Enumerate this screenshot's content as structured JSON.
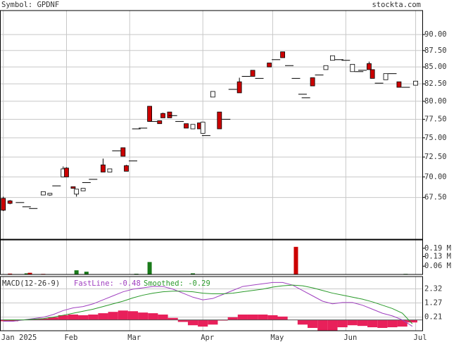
{
  "chart_data": {
    "type": "candlestick",
    "title": "Symbol: GPDNF",
    "source": "stockta.com",
    "log_scale": true,
    "grid": true,
    "up_color": "#ffffff",
    "down_color": "#cc0000",
    "xlim": [
      -1,
      126
    ],
    "xticks": [
      {
        "value": 0,
        "label": "Jan 2025"
      },
      {
        "value": 19,
        "label": "Feb"
      },
      {
        "value": 38,
        "label": "Mar"
      },
      {
        "value": 60,
        "label": "Apr"
      },
      {
        "value": 81,
        "label": "May"
      },
      {
        "value": 103,
        "label": "Jun"
      },
      {
        "value": 124,
        "label": "Jul"
      }
    ],
    "ylim": [
      62.7,
      93.9
    ],
    "yticks": [
      {
        "value": 67.5,
        "label": "67.50"
      },
      {
        "value": 70,
        "label": "70.00"
      },
      {
        "value": 72.5,
        "label": "72.50"
      },
      {
        "value": 75,
        "label": "75.00"
      },
      {
        "value": 77.5,
        "label": "77.50"
      },
      {
        "value": 80,
        "label": "80.00"
      },
      {
        "value": 82.5,
        "label": "82.50"
      },
      {
        "value": 85,
        "label": "85.00"
      },
      {
        "value": 87.5,
        "label": "87.50"
      },
      {
        "value": 90,
        "label": "90.00"
      }
    ],
    "candles": {
      "x": [
        0,
        2,
        5,
        7,
        9,
        12,
        14,
        16,
        18,
        19,
        21,
        22,
        24,
        25,
        27,
        30,
        32,
        34,
        36,
        37,
        39,
        40,
        42,
        44,
        45,
        47,
        48,
        50,
        51,
        53,
        55,
        57,
        59,
        60,
        61,
        63,
        65,
        67,
        69,
        71,
        73,
        75,
        77,
        80,
        82,
        84,
        86,
        88,
        90,
        91,
        93,
        95,
        97,
        99,
        101,
        103,
        105,
        107,
        108,
        110,
        111,
        113,
        115,
        117,
        119,
        121,
        124
      ],
      "open": [
        67.4,
        67.1,
        66.9,
        66.4,
        66.2,
        67.8,
        67.8,
        68.9,
        70.0,
        71.1,
        68.8,
        67.9,
        68.3,
        69.3,
        69.7,
        71.5,
        70.6,
        73.3,
        73.7,
        71.4,
        72.0,
        76.2,
        76.3,
        79.3,
        77.2,
        77.3,
        78.3,
        78.5,
        78.0,
        77.2,
        76.9,
        76.2,
        77.0,
        75.6,
        75.3,
        80.6,
        78.5,
        77.5,
        81.7,
        82.8,
        83.6,
        84.5,
        83.3,
        85.6,
        86.1,
        87.3,
        85.2,
        83.3,
        81.0,
        80.5,
        83.4,
        83.8,
        84.6,
        86.0,
        86.1,
        86.0,
        84.3,
        84.3,
        84.5,
        85.5,
        84.6,
        82.6,
        83.1,
        84.0,
        82.8,
        82.0,
        82.3
      ],
      "high": [
        67.6,
        67.2,
        66.9,
        66.4,
        66.2,
        68.2,
        68.0,
        68.9,
        71.3,
        71.2,
        68.8,
        68.5,
        68.6,
        69.3,
        69.7,
        72.3,
        71.0,
        73.3,
        73.7,
        71.5,
        72.0,
        76.2,
        76.3,
        79.3,
        77.2,
        77.3,
        78.4,
        78.5,
        78.0,
        77.2,
        76.9,
        76.8,
        77.0,
        77.1,
        75.3,
        81.4,
        78.5,
        77.5,
        81.7,
        83.4,
        83.6,
        84.5,
        83.3,
        85.6,
        86.1,
        87.3,
        85.2,
        83.3,
        81.0,
        80.5,
        83.4,
        83.8,
        85.2,
        86.7,
        86.1,
        86.0,
        85.4,
        84.3,
        84.5,
        85.8,
        84.6,
        82.6,
        84.0,
        84.0,
        82.8,
        82.0,
        82.9
      ],
      "low": [
        65.9,
        66.7,
        66.9,
        66.4,
        66.2,
        67.8,
        67.7,
        68.9,
        70.0,
        70.0,
        68.6,
        67.6,
        68.3,
        69.3,
        69.7,
        70.6,
        70.6,
        73.3,
        72.6,
        70.7,
        72.0,
        76.2,
        76.3,
        77.2,
        77.2,
        76.9,
        77.7,
        77.7,
        78.0,
        77.2,
        76.3,
        76.2,
        76.2,
        75.6,
        75.3,
        80.6,
        76.2,
        77.5,
        81.7,
        81.2,
        83.6,
        83.6,
        83.3,
        85.0,
        86.1,
        86.4,
        85.2,
        83.3,
        81.0,
        80.5,
        82.2,
        83.8,
        84.6,
        86.0,
        86.1,
        86.0,
        84.3,
        84.3,
        84.5,
        84.6,
        83.3,
        82.6,
        83.1,
        84.0,
        82.0,
        82.0,
        82.3
      ],
      "close": [
        66.0,
        66.8,
        66.9,
        66.4,
        66.2,
        68.2,
        68.0,
        68.9,
        71.0,
        70.0,
        68.6,
        68.5,
        68.6,
        69.3,
        69.7,
        70.6,
        71.0,
        73.3,
        72.6,
        70.7,
        72.0,
        76.2,
        76.3,
        77.2,
        77.2,
        76.9,
        77.7,
        77.7,
        78.0,
        77.2,
        76.3,
        76.8,
        76.2,
        77.1,
        75.3,
        81.4,
        76.2,
        77.5,
        81.7,
        81.2,
        83.6,
        83.6,
        83.3,
        85.0,
        86.1,
        86.4,
        85.2,
        83.3,
        81.0,
        80.5,
        82.2,
        83.8,
        85.2,
        86.7,
        86.1,
        86.0,
        85.4,
        84.3,
        84.5,
        84.6,
        83.3,
        82.6,
        84.0,
        84.0,
        82.0,
        82.0,
        82.9
      ]
    },
    "volume": {
      "ylim": [
        0,
        0.25
      ],
      "yticks": [
        {
          "value": 0.06,
          "label": "0.06 M"
        },
        {
          "value": 0.13,
          "label": "0.13 M"
        },
        {
          "value": 0.19,
          "label": "0.19 M"
        }
      ],
      "x": [
        2,
        7,
        8,
        12,
        22,
        25,
        40,
        44,
        57,
        88,
        121
      ],
      "values": [
        0.006,
        0.008,
        0.012,
        0.004,
        0.03,
        0.02,
        0.005,
        0.09,
        0.008,
        0.2,
        0.004
      ],
      "colors": [
        "#cc0000",
        "#1a7a1a",
        "#cc0000",
        "#cc0000",
        "#1a7a1a",
        "#1a7a1a",
        "#1a7a1a",
        "#1a7a1a",
        "#1a7a1a",
        "#cc0000",
        "#1a7a1a"
      ]
    },
    "macd": {
      "label": "MACD(12-26-9)",
      "ylim": [
        -0.81,
        3.24
      ],
      "yticks": [
        0.21,
        1.27,
        2.32
      ],
      "x": [
        0,
        3,
        6,
        9,
        12,
        15,
        18,
        21,
        24,
        27,
        30,
        33,
        36,
        39,
        42,
        45,
        48,
        51,
        54,
        57,
        60,
        63,
        66,
        69,
        72,
        75,
        78,
        81,
        84,
        87,
        90,
        93,
        96,
        99,
        102,
        105,
        108,
        111,
        114,
        117,
        120,
        123
      ],
      "series": [
        {
          "name": "FastLine: -0.48",
          "color": "#a040c0",
          "values": [
            -0.1,
            -0.1,
            0.0,
            0.1,
            0.2,
            0.4,
            0.7,
            0.9,
            1.0,
            1.2,
            1.5,
            1.8,
            2.1,
            2.3,
            2.4,
            2.5,
            2.5,
            2.3,
            2.0,
            1.7,
            1.5,
            1.6,
            1.9,
            2.2,
            2.5,
            2.6,
            2.7,
            2.8,
            2.8,
            2.6,
            2.2,
            1.8,
            1.4,
            1.2,
            1.3,
            1.3,
            1.1,
            0.8,
            0.5,
            0.3,
            0.0,
            -0.48
          ]
        },
        {
          "name": "Smoothed: -0.29",
          "color": "#2a9a2a",
          "values": [
            0.0,
            0.0,
            0.0,
            0.05,
            0.1,
            0.2,
            0.35,
            0.5,
            0.65,
            0.8,
            1.0,
            1.2,
            1.4,
            1.65,
            1.85,
            2.0,
            2.1,
            2.15,
            2.15,
            2.1,
            2.0,
            1.95,
            1.95,
            2.0,
            2.1,
            2.2,
            2.3,
            2.45,
            2.55,
            2.6,
            2.55,
            2.4,
            2.2,
            2.0,
            1.85,
            1.7,
            1.55,
            1.35,
            1.1,
            0.85,
            0.5,
            -0.29
          ]
        }
      ],
      "histogram": {
        "color": "#e8205a",
        "values": [
          -0.1,
          -0.1,
          0.0,
          0.05,
          0.1,
          0.2,
          0.35,
          0.4,
          0.35,
          0.4,
          0.5,
          0.6,
          0.7,
          0.65,
          0.55,
          0.5,
          0.4,
          0.15,
          -0.15,
          -0.4,
          -0.5,
          -0.35,
          -0.05,
          0.2,
          0.4,
          0.4,
          0.4,
          0.35,
          0.25,
          0.0,
          -0.35,
          -0.6,
          -0.8,
          -0.8,
          -0.55,
          -0.4,
          -0.45,
          -0.55,
          -0.6,
          -0.55,
          -0.5,
          -0.19
        ]
      }
    }
  }
}
